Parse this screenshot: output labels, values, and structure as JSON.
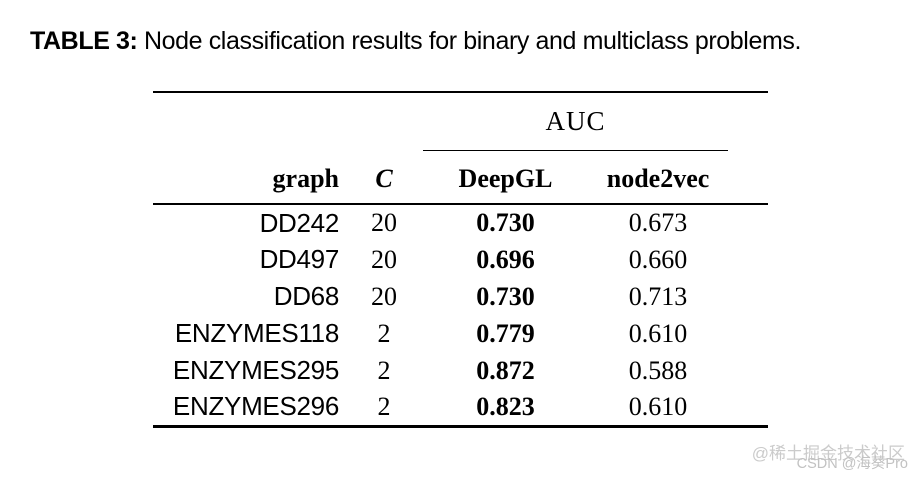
{
  "title": {
    "prefix": "TABLE 3:",
    "text": " Node classification results for binary and multiclass problems."
  },
  "table": {
    "span_header": "AUC",
    "columns": {
      "graph": "graph",
      "c": "C",
      "deepgl": "DeepGL",
      "node2vec": "node2vec"
    },
    "rows": [
      {
        "graph": "DD242",
        "c": "20",
        "deepgl": "0.730",
        "node2vec": "0.673"
      },
      {
        "graph": "DD497",
        "c": "20",
        "deepgl": "0.696",
        "node2vec": "0.660"
      },
      {
        "graph": "DD68",
        "c": "20",
        "deepgl": "0.730",
        "node2vec": "0.713"
      },
      {
        "graph": "ENZYMES118",
        "c": "2",
        "deepgl": "0.779",
        "node2vec": "0.610"
      },
      {
        "graph": "ENZYMES295",
        "c": "2",
        "deepgl": "0.872",
        "node2vec": "0.588"
      },
      {
        "graph": "ENZYMES296",
        "c": "2",
        "deepgl": "0.823",
        "node2vec": "0.610"
      }
    ]
  },
  "watermark": {
    "line1": "@稀土掘金技术社区",
    "line2": "CSDN @海葵Pro"
  },
  "colors": {
    "text": "#000000",
    "rule": "#000000",
    "background": "#ffffff",
    "watermark_line1": "#cbcbcb",
    "watermark_line2": "#c2c2c2"
  }
}
